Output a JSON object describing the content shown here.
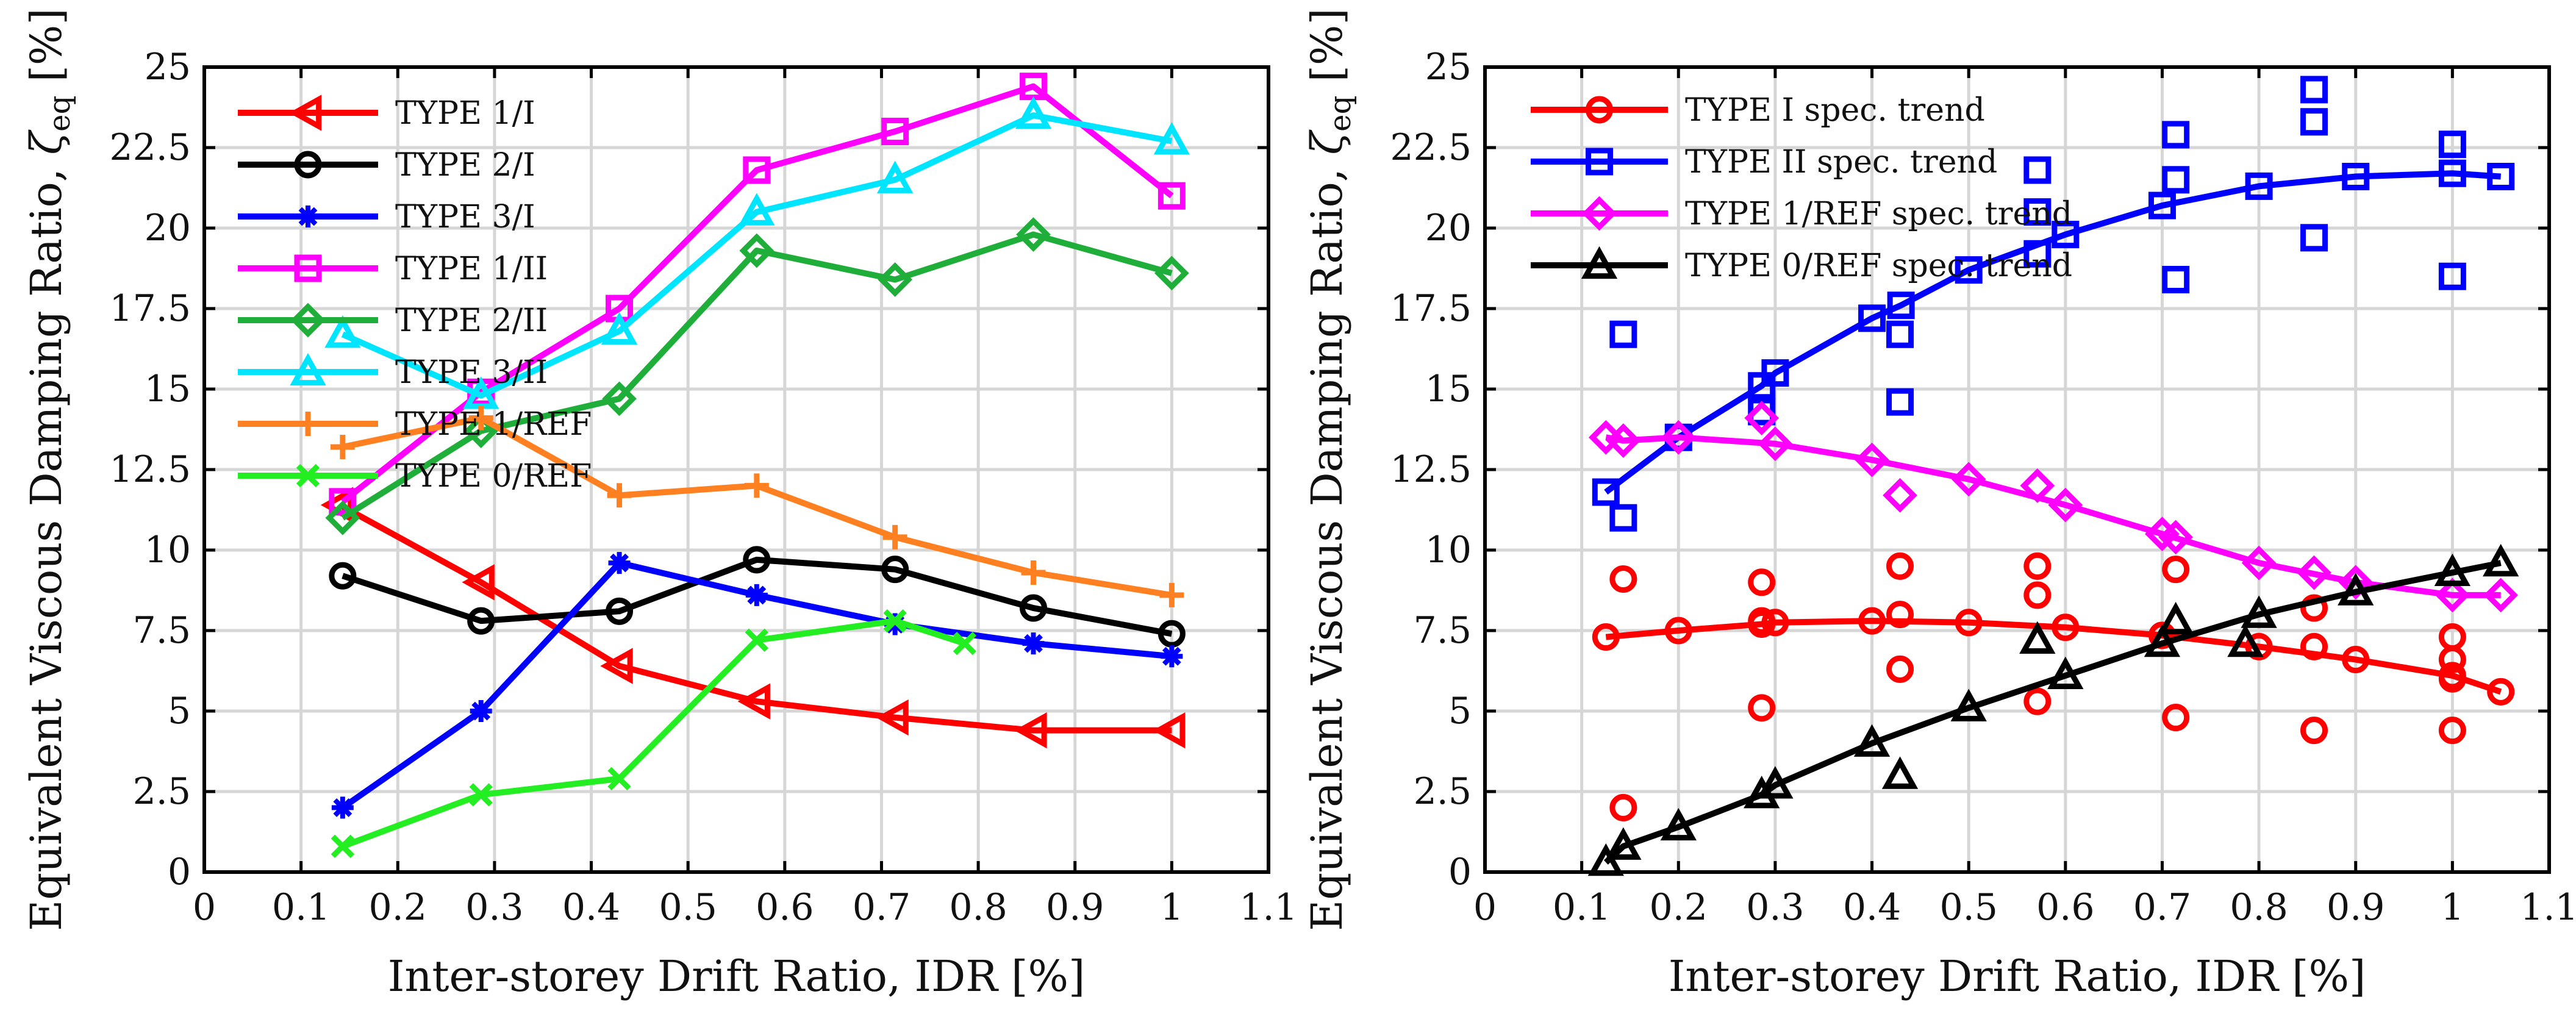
{
  "chart_data": [
    {
      "type": "line",
      "xlabel": "Inter-storey Drift Ratio, IDR [%]",
      "ylabel_prefix": "Equivalent Viscous Damping Ratio, ",
      "ylabel_symbol": "ζ",
      "ylabel_subscript": "eq",
      "ylabel_unit": " [%]",
      "xlim": [
        0,
        1.1
      ],
      "ylim": [
        0,
        25
      ],
      "xticks": [
        0,
        0.1,
        0.2,
        0.3,
        0.4,
        0.5,
        0.6,
        0.7,
        0.8,
        0.9,
        1,
        1.1
      ],
      "xtick_labels": [
        "0",
        "0.1",
        "0.2",
        "0.3",
        "0.4",
        "0.5",
        "0.6",
        "0.7",
        "0.8",
        "0.9",
        "1",
        "1.1"
      ],
      "yticks": [
        0,
        2.5,
        5,
        7.5,
        10,
        12.5,
        15,
        17.5,
        20,
        22.5,
        25
      ],
      "ytick_labels": [
        "0",
        "2.5",
        "5",
        "7.5",
        "10",
        "12.5",
        "15",
        "17.5",
        "20",
        "22.5",
        "25"
      ],
      "grid": true,
      "legend_position": "top-left",
      "series": [
        {
          "name": "TYPE 1/I",
          "color": "#ff0000",
          "marker": "triangle-left",
          "x": [
            0.14,
            0.286,
            0.429,
            0.571,
            0.714,
            0.857,
            1.0
          ],
          "y": [
            11.4,
            9.0,
            6.4,
            5.3,
            4.8,
            4.4,
            4.4
          ]
        },
        {
          "name": "TYPE 2/I",
          "color": "#000000",
          "marker": "circle",
          "x": [
            0.143,
            0.286,
            0.429,
            0.571,
            0.714,
            0.857,
            1.0
          ],
          "y": [
            9.2,
            7.8,
            8.1,
            9.7,
            9.4,
            8.2,
            7.4
          ]
        },
        {
          "name": "TYPE 3/I",
          "color": "#0000ff",
          "marker": "star",
          "x": [
            0.143,
            0.286,
            0.429,
            0.571,
            0.714,
            0.857,
            1.0
          ],
          "y": [
            2.0,
            5.0,
            9.6,
            8.6,
            7.7,
            7.1,
            6.7
          ]
        },
        {
          "name": "TYPE 1/II",
          "color": "#ff00ff",
          "marker": "square",
          "x": [
            0.143,
            0.286,
            0.429,
            0.571,
            0.714,
            0.857,
            1.0
          ],
          "y": [
            11.5,
            14.9,
            17.5,
            21.8,
            23.0,
            24.4,
            21.0
          ]
        },
        {
          "name": "TYPE 2/II",
          "color": "#1fae3a",
          "marker": "diamond",
          "x": [
            0.143,
            0.286,
            0.429,
            0.571,
            0.714,
            0.857,
            1.0
          ],
          "y": [
            11.0,
            13.7,
            14.7,
            19.3,
            18.4,
            19.8,
            18.6
          ]
        },
        {
          "name": "TYPE 3/II",
          "color": "#00e5ff",
          "marker": "triangle-up",
          "x": [
            0.143,
            0.286,
            0.429,
            0.571,
            0.714,
            0.857,
            1.0
          ],
          "y": [
            16.7,
            14.8,
            16.8,
            20.5,
            21.5,
            23.5,
            22.7
          ]
        },
        {
          "name": "TYPE 1/REF",
          "color": "#ff8020",
          "marker": "plus",
          "x": [
            0.143,
            0.286,
            0.429,
            0.571,
            0.714,
            0.857,
            1.0
          ],
          "y": [
            13.2,
            14.1,
            11.7,
            12.0,
            10.4,
            9.3,
            8.6
          ]
        },
        {
          "name": "TYPE 0/REF",
          "color": "#22ee22",
          "marker": "x",
          "x": [
            0.143,
            0.286,
            0.429,
            0.571,
            0.714,
            0.786
          ],
          "y": [
            0.8,
            2.4,
            2.9,
            7.2,
            7.8,
            7.1
          ]
        }
      ]
    },
    {
      "type": "scatter",
      "xlabel": "Inter-storey Drift Ratio, IDR [%]",
      "ylabel_prefix": "Equivalent Viscous Damping Ratio, ",
      "ylabel_symbol": "ζ",
      "ylabel_subscript": "eq",
      "ylabel_unit": " [%]",
      "xlim": [
        0,
        1.1
      ],
      "ylim": [
        0,
        25
      ],
      "xticks": [
        0,
        0.1,
        0.2,
        0.3,
        0.4,
        0.5,
        0.6,
        0.7,
        0.8,
        0.9,
        1,
        1.1
      ],
      "xtick_labels": [
        "0",
        "0.1",
        "0.2",
        "0.3",
        "0.4",
        "0.5",
        "0.6",
        "0.7",
        "0.8",
        "0.9",
        "1",
        "1.1"
      ],
      "yticks": [
        0,
        2.5,
        5,
        7.5,
        10,
        12.5,
        15,
        17.5,
        20,
        22.5,
        25
      ],
      "ytick_labels": [
        "0",
        "2.5",
        "5",
        "7.5",
        "10",
        "12.5",
        "15",
        "17.5",
        "20",
        "22.5",
        "25"
      ],
      "grid": true,
      "legend_position": "top-left",
      "series": [
        {
          "name": "TYPE I spec. trend",
          "color": "#ff0000",
          "marker": "circle",
          "trend_x": [
            0.125,
            0.2,
            0.286,
            0.3,
            0.4,
            0.5,
            0.6,
            0.7,
            0.8,
            0.9,
            1.0,
            1.05
          ],
          "trend_y": [
            7.3,
            7.5,
            7.7,
            7.75,
            7.8,
            7.75,
            7.6,
            7.35,
            7.0,
            6.6,
            6.1,
            5.6
          ],
          "points_x": [
            0.143,
            0.143,
            0.286,
            0.286,
            0.286,
            0.429,
            0.429,
            0.429,
            0.571,
            0.571,
            0.571,
            0.714,
            0.714,
            0.857,
            0.857,
            0.857,
            1.0,
            1.0,
            1.0,
            1.0
          ],
          "points_y": [
            9.1,
            2.0,
            9.0,
            7.8,
            5.1,
            9.5,
            8.0,
            6.3,
            9.5,
            8.6,
            5.3,
            9.4,
            4.8,
            8.2,
            7.0,
            4.4,
            7.3,
            6.6,
            6.0,
            4.4
          ]
        },
        {
          "name": "TYPE II spec. trend",
          "color": "#0000ff",
          "marker": "square",
          "trend_x": [
            0.125,
            0.2,
            0.286,
            0.3,
            0.4,
            0.43,
            0.5,
            0.6,
            0.7,
            0.8,
            0.9,
            1.0,
            1.05
          ],
          "trend_y": [
            11.8,
            13.5,
            15.1,
            15.5,
            17.2,
            17.6,
            18.7,
            19.8,
            20.7,
            21.3,
            21.6,
            21.7,
            21.6
          ],
          "points_x": [
            0.143,
            0.143,
            0.286,
            0.429,
            0.429,
            0.571,
            0.571,
            0.571,
            0.714,
            0.714,
            0.714,
            0.857,
            0.857,
            0.857,
            1.0,
            1.0
          ],
          "points_y": [
            16.7,
            11.0,
            14.3,
            16.7,
            14.6,
            21.8,
            20.5,
            19.2,
            22.9,
            21.5,
            18.4,
            24.3,
            23.3,
            19.7,
            22.6,
            18.5
          ]
        },
        {
          "name": "TYPE 1/REF spec. trend",
          "color": "#ff00ff",
          "marker": "diamond",
          "trend_x": [
            0.125,
            0.143,
            0.2,
            0.3,
            0.4,
            0.5,
            0.6,
            0.7,
            0.8,
            0.9,
            1.0,
            1.05
          ],
          "trend_y": [
            13.5,
            13.4,
            13.5,
            13.3,
            12.8,
            12.2,
            11.4,
            10.5,
            9.6,
            9.0,
            8.6,
            8.6
          ],
          "points_x": [
            0.286,
            0.429,
            0.571,
            0.714,
            0.857
          ],
          "points_y": [
            14.1,
            11.7,
            12.0,
            10.4,
            9.3
          ]
        },
        {
          "name": "TYPE 0/REF spec. trend",
          "color": "#000000",
          "marker": "triangle-up",
          "trend_x": [
            0.125,
            0.143,
            0.2,
            0.286,
            0.3,
            0.4,
            0.5,
            0.6,
            0.7,
            0.8,
            0.9,
            1.0,
            1.05
          ],
          "trend_y": [
            0.3,
            0.8,
            1.4,
            2.4,
            2.7,
            4.0,
            5.1,
            6.1,
            7.1,
            8.0,
            8.7,
            9.3,
            9.6
          ],
          "points_x": [
            0.429,
            0.571,
            0.714,
            0.786
          ],
          "points_y": [
            3.0,
            7.2,
            7.8,
            7.1
          ]
        }
      ]
    }
  ]
}
